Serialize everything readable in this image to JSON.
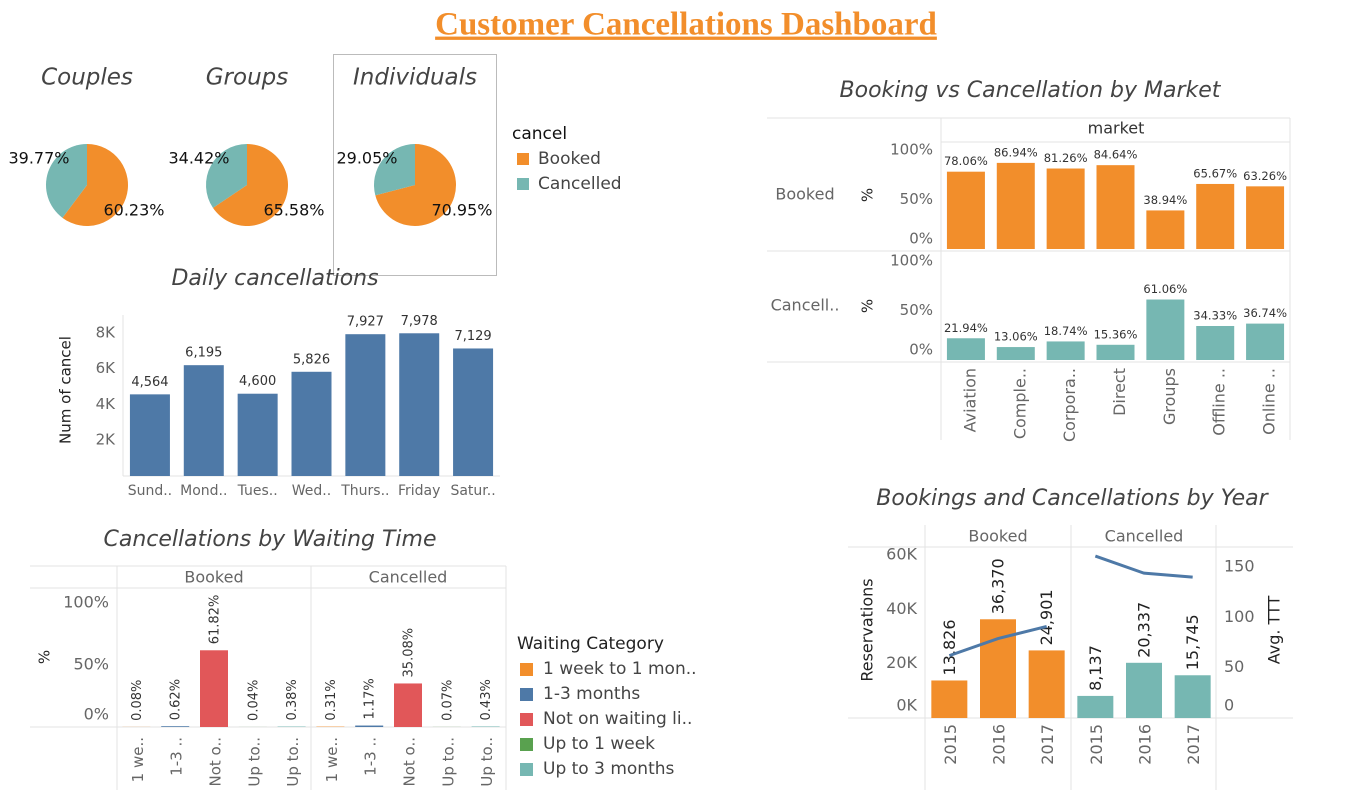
{
  "title": "Customer Cancellations Dashboard",
  "chart_data": [
    {
      "type": "pie",
      "legend_title": "cancel",
      "categories": [
        "Booked",
        "Cancelled"
      ],
      "colors": [
        "#f28e2b",
        "#76b7b2"
      ],
      "pies": [
        {
          "title": "Couples",
          "values": [
            60.23,
            39.77
          ],
          "value_labels": [
            "60.23%",
            "39.77%"
          ]
        },
        {
          "title": "Groups",
          "values": [
            65.58,
            34.42
          ],
          "value_labels": [
            "65.58%",
            "34.42%"
          ]
        },
        {
          "title": "Individuals",
          "values": [
            70.95,
            29.05
          ],
          "value_labels": [
            "70.95%",
            "29.05%"
          ]
        }
      ]
    },
    {
      "type": "bar",
      "title": "Daily cancellations",
      "ylabel": "Num of cancel",
      "categories": [
        "Sund..",
        "Mond..",
        "Tues..",
        "Wed..",
        "Thurs..",
        "Friday",
        "Satur.."
      ],
      "values": [
        4564,
        6195,
        4600,
        5826,
        7927,
        7978,
        7129
      ],
      "value_labels": [
        "4,564",
        "6,195",
        "4,600",
        "5,826",
        "7,927",
        "7,978",
        "7,129"
      ],
      "color": "#4e79a7",
      "ylim": [
        0,
        9000
      ],
      "yticks": [
        {
          "value": 2000,
          "label": "2K"
        },
        {
          "value": 4000,
          "label": "4K"
        },
        {
          "value": 6000,
          "label": "6K"
        },
        {
          "value": 8000,
          "label": "8K"
        }
      ]
    },
    {
      "type": "rowbar",
      "title": "Booking vs Cancellation by Market",
      "column_header": "market",
      "ylabel": "%",
      "categories": [
        "Aviation",
        "Comple..",
        "Corpora..",
        "Direct",
        "Groups",
        "Offline ..",
        "Online .."
      ],
      "series": [
        {
          "name": "Booked",
          "color": "#f28e2b",
          "values": [
            78.06,
            86.94,
            81.26,
            84.64,
            38.94,
            65.67,
            63.26
          ],
          "value_labels": [
            "78.06%",
            "86.94%",
            "81.26%",
            "84.64%",
            "38.94%",
            "65.67%",
            "63.26%"
          ]
        },
        {
          "name": "Cancell..",
          "color": "#76b7b2",
          "values": [
            21.94,
            13.06,
            18.74,
            15.36,
            61.06,
            34.33,
            36.74
          ],
          "value_labels": [
            "21.94%",
            "13.06%",
            "18.74%",
            "15.36%",
            "61.06%",
            "34.33%",
            "36.74%"
          ]
        }
      ],
      "ylim": [
        0,
        105
      ],
      "yticks": [
        {
          "value": 0,
          "label": "0%"
        },
        {
          "value": 50,
          "label": "50%"
        },
        {
          "value": 100,
          "label": "100%"
        }
      ]
    },
    {
      "type": "colbar",
      "title": "Cancellations by Waiting Time",
      "ylabel": "%",
      "categories": [
        "1 we..",
        "1-3 ..",
        "Not o..",
        "Up to..",
        "Up to.."
      ],
      "facets": [
        {
          "name": "Booked",
          "values": [
            0.08,
            0.62,
            61.82,
            0.04,
            0.38
          ],
          "value_labels": [
            "0.08%",
            "0.62%",
            "61.82%",
            "0.04%",
            "0.38%"
          ]
        },
        {
          "name": "Cancelled",
          "values": [
            0.31,
            1.17,
            35.08,
            0.07,
            0.43
          ],
          "value_labels": [
            "0.31%",
            "1.17%",
            "35.08%",
            "0.07%",
            "0.43%"
          ]
        }
      ],
      "legend_title": "Waiting Category",
      "legend": [
        {
          "name": "1 week to 1 mon..",
          "color": "#f28e2b"
        },
        {
          "name": "1-3 months",
          "color": "#4e79a7"
        },
        {
          "name": "Not on waiting li..",
          "color": "#e15759"
        },
        {
          "name": "Up to 1 week",
          "color": "#59a14f"
        },
        {
          "name": "Up to 3 months",
          "color": "#76b7b2"
        }
      ],
      "ylim": [
        0,
        112
      ],
      "yticks": [
        {
          "value": 0,
          "label": "0%"
        },
        {
          "value": 50,
          "label": "50%"
        },
        {
          "value": 100,
          "label": "100%"
        }
      ]
    },
    {
      "type": "combo",
      "title": "Bookings and Cancellations by Year",
      "ylabel": "Reservations",
      "y2label": "Avg. TTT",
      "categories": [
        "2015",
        "2016",
        "2017"
      ],
      "facets": [
        {
          "name": "Booked",
          "color": "#f28e2b",
          "values": [
            13826,
            36370,
            24901
          ],
          "value_labels": [
            "13,826",
            "36,370",
            "24,901"
          ],
          "line_values": [
            62,
            79,
            91
          ]
        },
        {
          "name": "Cancelled",
          "color": "#76b7b2",
          "values": [
            8137,
            20337,
            15745
          ],
          "value_labels": [
            "8,137",
            "20,337",
            "15,745"
          ],
          "line_values": [
            161,
            144,
            140
          ]
        }
      ],
      "line_color": "#4e79a7",
      "ylim": [
        0,
        63000
      ],
      "yticks": [
        {
          "value": 0,
          "label": "0K"
        },
        {
          "value": 20000,
          "label": "20K"
        },
        {
          "value": 40000,
          "label": "40K"
        },
        {
          "value": 60000,
          "label": "60K"
        }
      ],
      "y2lim": [
        0,
        170
      ],
      "y2ticks": [
        0,
        50,
        100,
        150
      ]
    }
  ]
}
